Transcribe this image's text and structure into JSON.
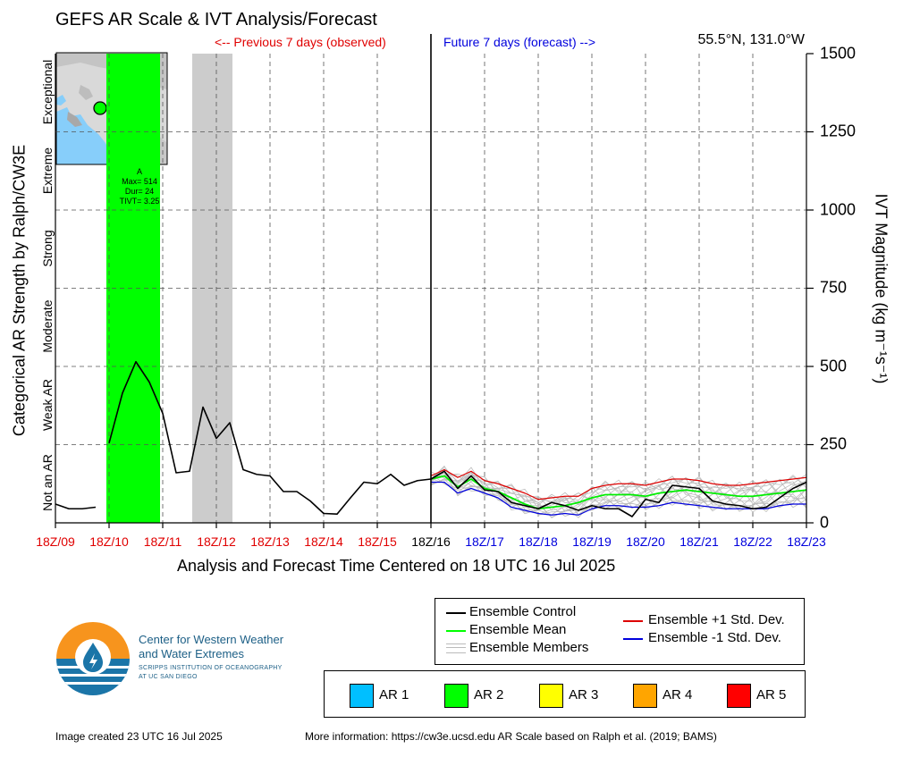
{
  "title": "GEFS AR Scale & IVT Analysis/Forecast",
  "prev_label": "<-- Previous 7 days (observed)",
  "next_label": "Future 7 days (forecast) -->",
  "location": "55.5°N, 131.0°W",
  "x_axis_title": "Analysis and Forecast Time Centered on 18 UTC 16 Jul 2025",
  "y_left_title": "Categorical AR Strength by Ralph/CW3E",
  "y_right_title": "IVT Magnitude (kg m⁻¹s⁻¹)",
  "categories": [
    "Not an AR",
    "Weak AR",
    "Moderate",
    "Strong",
    "Extreme",
    "Exceptional"
  ],
  "y_ticks": [
    "0",
    "250",
    "500",
    "750",
    "1000",
    "1250",
    "1500"
  ],
  "x_ticks": [
    {
      "label": "18Z/09",
      "color": "#e00000"
    },
    {
      "label": "18Z/10",
      "color": "#e00000"
    },
    {
      "label": "18Z/11",
      "color": "#e00000"
    },
    {
      "label": "18Z/12",
      "color": "#e00000"
    },
    {
      "label": "18Z/13",
      "color": "#e00000"
    },
    {
      "label": "18Z/14",
      "color": "#e00000"
    },
    {
      "label": "18Z/15",
      "color": "#e00000"
    },
    {
      "label": "18Z/16",
      "color": "#000000"
    },
    {
      "label": "18Z/17",
      "color": "#0000dd"
    },
    {
      "label": "18Z/18",
      "color": "#0000dd"
    },
    {
      "label": "18Z/19",
      "color": "#0000dd"
    },
    {
      "label": "18Z/20",
      "color": "#0000dd"
    },
    {
      "label": "18Z/21",
      "color": "#0000dd"
    },
    {
      "label": "18Z/22",
      "color": "#0000dd"
    },
    {
      "label": "18Z/23",
      "color": "#0000dd"
    }
  ],
  "ar_event": {
    "label": "A",
    "max": "Max= 514",
    "dur": "Dur= 24",
    "tivt": "TIVT= 3.25"
  },
  "legend": {
    "control": "Ensemble Control",
    "mean": "Ensemble Mean",
    "members": "Ensemble Members",
    "plus": "Ensemble +1 Std. Dev.",
    "minus": "Ensemble -1 Std. Dev."
  },
  "ar_legend": [
    {
      "label": "AR 1",
      "color": "#00bfff"
    },
    {
      "label": "AR 2",
      "color": "#00ff00"
    },
    {
      "label": "AR 3",
      "color": "#ffff00"
    },
    {
      "label": "AR 4",
      "color": "#ffa500"
    },
    {
      "label": "AR 5",
      "color": "#ff0000"
    }
  ],
  "org": {
    "line1": "Center for Western Weather",
    "line2": "and Water Extremes",
    "line3": "SCRIPPS INSTITUTION OF OCEANOGRAPHY",
    "line4": "AT UC SAN DIEGO"
  },
  "created": "Image created 23 UTC 16 Jul 2025",
  "more_info": "More information: https://cw3e.ucsd.edu AR Scale based on Ralph et al. (2019; BAMS)",
  "chart_data": {
    "type": "line",
    "x_unit": "days relative to 18Z/16 Jul 2025",
    "ylim": [
      0,
      1500
    ],
    "xlim": [
      -7,
      7
    ],
    "shaded_periods": [
      {
        "kind": "AR 2",
        "color": "#00ff00",
        "start": -6.05,
        "end": -5.05
      },
      {
        "kind": "AR 1",
        "color": "#cccccc",
        "start": -4.45,
        "end": -3.7
      }
    ],
    "observed": {
      "name": "Ensemble Control",
      "x": [
        -7,
        -6.75,
        -6.5,
        -6.25,
        -6.0,
        -5.75,
        -5.5,
        -5.25,
        -5.0,
        -4.75,
        -4.5,
        -4.25,
        -4.0,
        -3.75,
        -3.5,
        -3.25,
        -3.0,
        -2.75,
        -2.5,
        -2.25,
        -2.0,
        -1.75,
        -1.5,
        -1.25,
        -1.0,
        -0.75,
        -0.5,
        -0.25,
        0
      ],
      "y": [
        60,
        45,
        45,
        50,
        255,
        415,
        515,
        450,
        350,
        160,
        165,
        370,
        270,
        320,
        170,
        155,
        150,
        100,
        100,
        70,
        30,
        28,
        80,
        130,
        125,
        155,
        120,
        135,
        140
      ]
    },
    "forecast": {
      "x": [
        0,
        0.25,
        0.5,
        0.75,
        1.0,
        1.25,
        1.5,
        1.75,
        2.0,
        2.25,
        2.5,
        2.75,
        3.0,
        3.25,
        3.5,
        3.75,
        4.0,
        4.25,
        4.5,
        4.75,
        5.0,
        5.25,
        5.5,
        5.75,
        6.0,
        6.25,
        6.5,
        6.75,
        7.0
      ],
      "control": [
        140,
        165,
        110,
        150,
        105,
        100,
        65,
        55,
        45,
        65,
        55,
        40,
        55,
        45,
        45,
        20,
        75,
        65,
        120,
        115,
        110,
        70,
        60,
        55,
        45,
        50,
        80,
        110,
        130
      ],
      "mean": [
        140,
        150,
        115,
        140,
        110,
        100,
        80,
        60,
        45,
        50,
        55,
        65,
        80,
        90,
        90,
        90,
        85,
        95,
        100,
        105,
        100,
        95,
        90,
        85,
        85,
        90,
        95,
        100,
        105
      ],
      "plus_1sd": [
        150,
        170,
        145,
        165,
        135,
        125,
        110,
        95,
        75,
        80,
        85,
        85,
        110,
        120,
        125,
        125,
        120,
        130,
        140,
        140,
        135,
        125,
        120,
        120,
        125,
        130,
        135,
        140,
        145
      ],
      "minus_1sd": [
        130,
        130,
        95,
        110,
        95,
        80,
        50,
        40,
        30,
        25,
        30,
        25,
        45,
        55,
        55,
        50,
        50,
        55,
        65,
        60,
        55,
        50,
        45,
        45,
        45,
        45,
        55,
        60,
        60
      ]
    }
  }
}
